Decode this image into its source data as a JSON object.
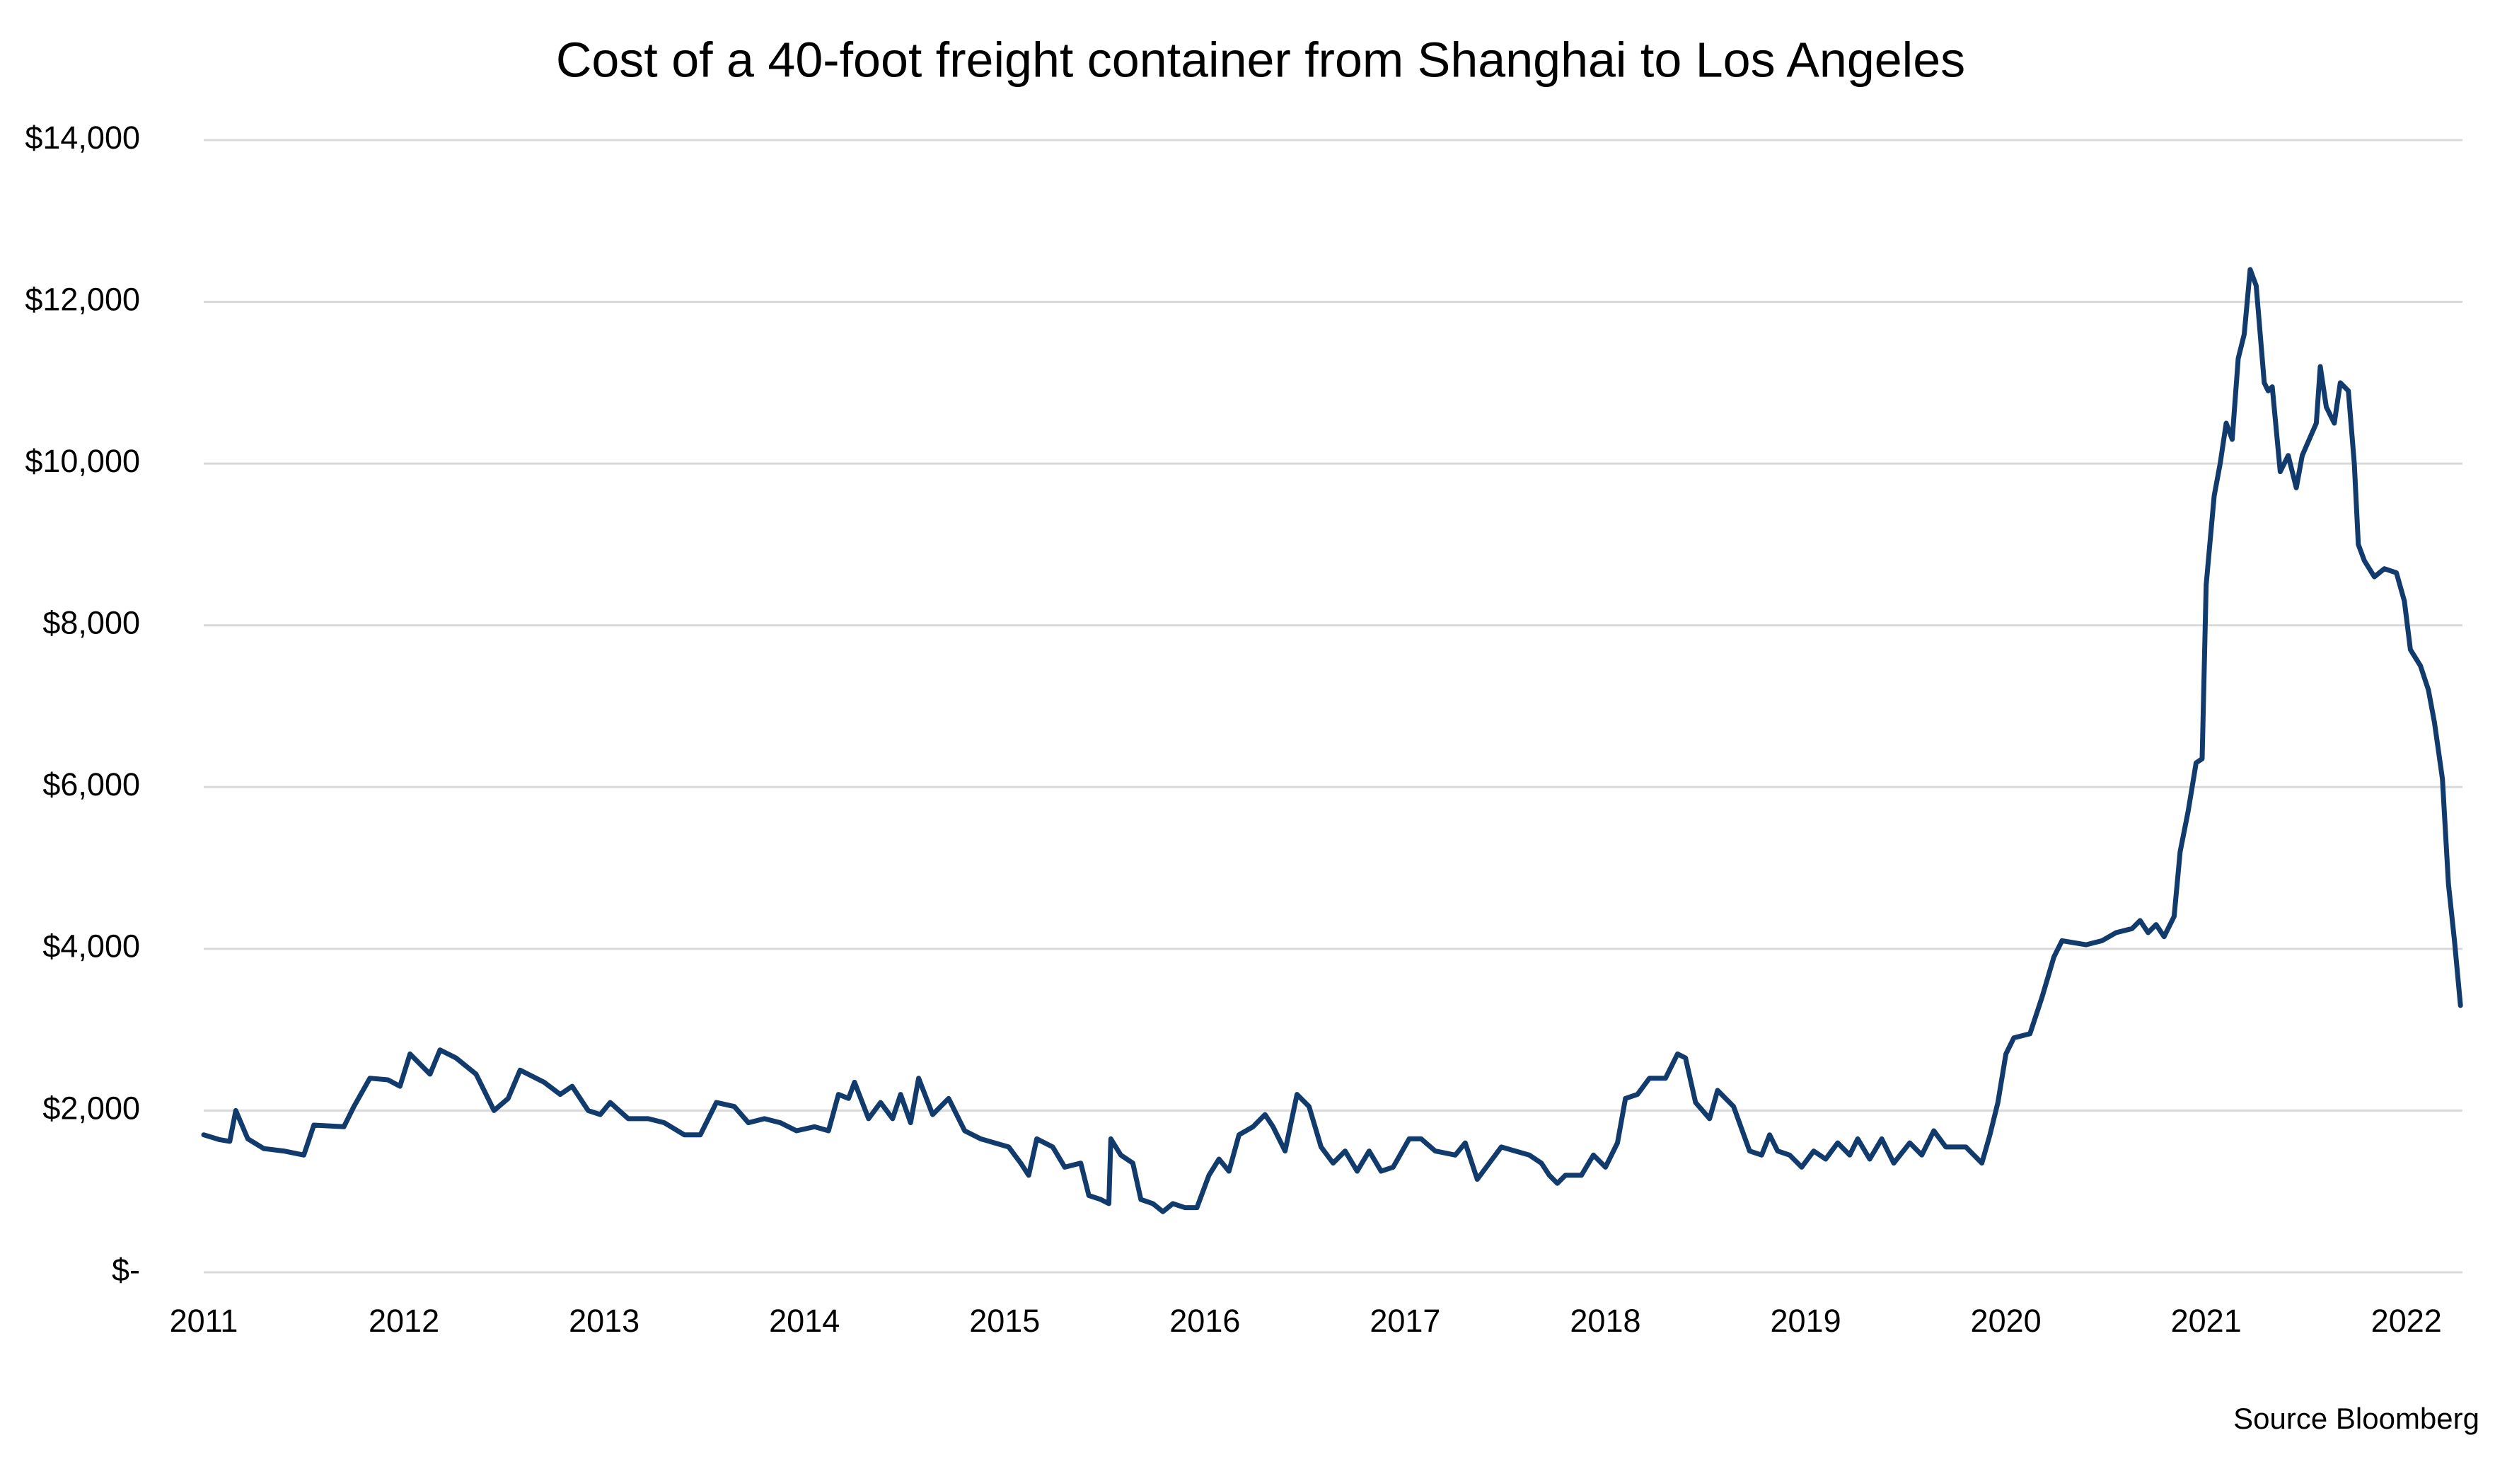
{
  "chart_data": {
    "type": "line",
    "title": "Cost of a 40-foot freight container from Shanghai to Los Angeles",
    "source": "Source Bloomberg",
    "x": [
      2011.0,
      2011.08,
      2011.13,
      2011.16,
      2011.22,
      2011.3,
      2011.4,
      2011.5,
      2011.55,
      2011.7,
      2011.75,
      2011.83,
      2011.92,
      2011.98,
      2012.03,
      2012.13,
      2012.18,
      2012.26,
      2012.36,
      2012.45,
      2012.52,
      2012.58,
      2012.7,
      2012.78,
      2012.84,
      2012.92,
      2012.98,
      2013.03,
      2013.12,
      2013.22,
      2013.3,
      2013.4,
      2013.48,
      2013.56,
      2013.65,
      2013.72,
      2013.8,
      2013.88,
      2013.96,
      2014.05,
      2014.12,
      2014.17,
      2014.22,
      2014.25,
      2014.32,
      2014.38,
      2014.44,
      2014.48,
      2014.53,
      2014.57,
      2014.64,
      2014.72,
      2014.8,
      2014.88,
      2014.95,
      2015.02,
      2015.08,
      2015.12,
      2015.16,
      2015.24,
      2015.3,
      2015.38,
      2015.42,
      2015.48,
      2015.52,
      2015.53,
      2015.58,
      2015.64,
      2015.68,
      2015.74,
      2015.79,
      2015.84,
      2015.9,
      2015.96,
      2016.02,
      2016.07,
      2016.12,
      2016.17,
      2016.24,
      2016.3,
      2016.34,
      2016.4,
      2016.46,
      2016.52,
      2016.58,
      2016.64,
      2016.7,
      2016.76,
      2016.82,
      2016.88,
      2016.94,
      2017.02,
      2017.08,
      2017.15,
      2017.25,
      2017.3,
      2017.36,
      2017.42,
      2017.48,
      2017.55,
      2017.62,
      2017.68,
      2017.72,
      2017.76,
      2017.8,
      2017.88,
      2017.94,
      2018.0,
      2018.06,
      2018.1,
      2018.16,
      2018.22,
      2018.3,
      2018.36,
      2018.4,
      2018.45,
      2018.52,
      2018.56,
      2018.64,
      2018.72,
      2018.78,
      2018.82,
      2018.86,
      2018.92,
      2018.98,
      2019.04,
      2019.1,
      2019.16,
      2019.22,
      2019.26,
      2019.32,
      2019.38,
      2019.44,
      2019.52,
      2019.58,
      2019.64,
      2019.7,
      2019.8,
      2019.88,
      2019.92,
      2019.96,
      2020.0,
      2020.04,
      2020.12,
      2020.18,
      2020.24,
      2020.28,
      2020.4,
      2020.48,
      2020.55,
      2020.63,
      2020.67,
      2020.71,
      2020.75,
      2020.79,
      2020.84,
      2020.87,
      2020.91,
      2020.95,
      2020.98,
      2021.0,
      2021.04,
      2021.07,
      2021.1,
      2021.13,
      2021.16,
      2021.19,
      2021.22,
      2021.25,
      2021.29,
      2021.31,
      2021.33,
      2021.37,
      2021.41,
      2021.45,
      2021.48,
      2021.55,
      2021.57,
      2021.6,
      2021.64,
      2021.67,
      2021.71,
      2021.74,
      2021.76,
      2021.79,
      2021.84,
      2021.89,
      2021.95,
      2021.99,
      2022.02,
      2022.07,
      2022.11,
      2022.14,
      2022.18,
      2022.21,
      2022.24,
      2022.27
    ],
    "series": [
      {
        "name": "Cost",
        "color": "#123b6d",
        "values": [
          1700,
          1640,
          1620,
          2000,
          1650,
          1530,
          1500,
          1450,
          1820,
          1800,
          2050,
          2400,
          2380,
          2300,
          2700,
          2450,
          2750,
          2650,
          2450,
          2000,
          2150,
          2500,
          2350,
          2200,
          2300,
          2000,
          1950,
          2100,
          1900,
          1900,
          1850,
          1700,
          1700,
          2100,
          2050,
          1850,
          1900,
          1850,
          1750,
          1800,
          1750,
          2200,
          2150,
          2350,
          1900,
          2100,
          1900,
          2200,
          1850,
          2400,
          1950,
          2150,
          1750,
          1650,
          1600,
          1550,
          1350,
          1200,
          1650,
          1550,
          1300,
          1350,
          950,
          900,
          850,
          1650,
          1450,
          1350,
          900,
          850,
          750,
          850,
          800,
          800,
          1200,
          1400,
          1250,
          1700,
          1800,
          1950,
          1800,
          1500,
          2200,
          2050,
          1550,
          1350,
          1500,
          1250,
          1500,
          1250,
          1300,
          1650,
          1650,
          1500,
          1450,
          1600,
          1150,
          1350,
          1550,
          1500,
          1450,
          1350,
          1200,
          1100,
          1200,
          1200,
          1450,
          1300,
          1600,
          2150,
          2200,
          2400,
          2400,
          2700,
          2650,
          2100,
          1900,
          2250,
          2050,
          1500,
          1450,
          1700,
          1500,
          1450,
          1300,
          1500,
          1400,
          1600,
          1450,
          1650,
          1400,
          1650,
          1350,
          1600,
          1450,
          1750,
          1550,
          1550,
          1350,
          1700,
          2100,
          2700,
          2900,
          2950,
          3400,
          3900,
          4100,
          4050,
          4100,
          4200,
          4250,
          4350,
          4200,
          4300,
          4150,
          4400,
          5200,
          5700,
          6300,
          6350,
          8500,
          9600,
          10000,
          10500,
          10300,
          11300,
          11600,
          12400,
          12200,
          11000,
          10900,
          10950,
          9900,
          10100,
          9700,
          10100,
          10500,
          11200,
          10700,
          10500,
          11000,
          10900,
          10000,
          9000,
          8800,
          8600,
          8700,
          8650,
          8300,
          7700,
          7500,
          7200,
          6800,
          6100,
          4800,
          4100,
          3300
        ]
      }
    ],
    "xlim": [
      2011,
      2022.28
    ],
    "xticks": [
      2011,
      2012,
      2013,
      2014,
      2015,
      2016,
      2017,
      2018,
      2019,
      2020,
      2021,
      2022
    ],
    "ylim": [
      0,
      14000
    ],
    "yticks": [
      {
        "value": 0,
        "label": "$-"
      },
      {
        "value": 2000,
        "label": "$2,000"
      },
      {
        "value": 4000,
        "label": "$4,000"
      },
      {
        "value": 6000,
        "label": "$6,000"
      },
      {
        "value": 8000,
        "label": "$8,000"
      },
      {
        "value": 10000,
        "label": "$10,000"
      },
      {
        "value": 12000,
        "label": "$12,000"
      },
      {
        "value": 14000,
        "label": "$14,000"
      }
    ],
    "grid": true
  }
}
